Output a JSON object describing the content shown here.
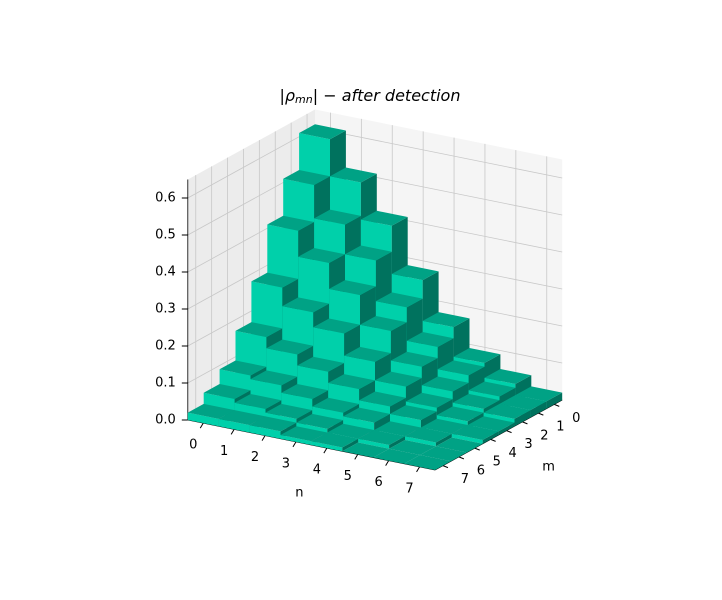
{
  "chart_data": {
    "type": "bar3d",
    "title": {
      "prefix": "|ρ",
      "subscript": "mn",
      "suffix": "| − after detection"
    },
    "xlabel": "n",
    "ylabel": "m",
    "xticks": [
      0,
      1,
      2,
      3,
      4,
      5,
      6,
      7
    ],
    "yticks": [
      0,
      1,
      2,
      3,
      4,
      5,
      6,
      7
    ],
    "zlim": [
      0,
      0.65
    ],
    "zticks": [
      {
        "value": 0,
        "label": "0.0"
      },
      0.1,
      0.2,
      0.3,
      0.4,
      0.5,
      0.6
    ],
    "color": "#00d0aa",
    "grid": true,
    "z": [
      [
        0.61,
        0.51,
        0.41,
        0.28,
        0.17,
        0.09,
        0.05,
        0.02
      ],
      [
        0.51,
        0.42,
        0.34,
        0.23,
        0.14,
        0.08,
        0.04,
        0.02
      ],
      [
        0.41,
        0.34,
        0.27,
        0.19,
        0.11,
        0.06,
        0.03,
        0.02
      ],
      [
        0.28,
        0.23,
        0.19,
        0.13,
        0.08,
        0.04,
        0.02,
        0.01
      ],
      [
        0.17,
        0.14,
        0.11,
        0.08,
        0.05,
        0.03,
        0.01,
        0.01
      ],
      [
        0.09,
        0.08,
        0.06,
        0.04,
        0.03,
        0.01,
        0.01,
        0
      ],
      [
        0.05,
        0.04,
        0.03,
        0.02,
        0.01,
        0.01,
        0,
        0
      ],
      [
        0.02,
        0.02,
        0.02,
        0.01,
        0.01,
        0,
        0,
        0
      ]
    ]
  }
}
